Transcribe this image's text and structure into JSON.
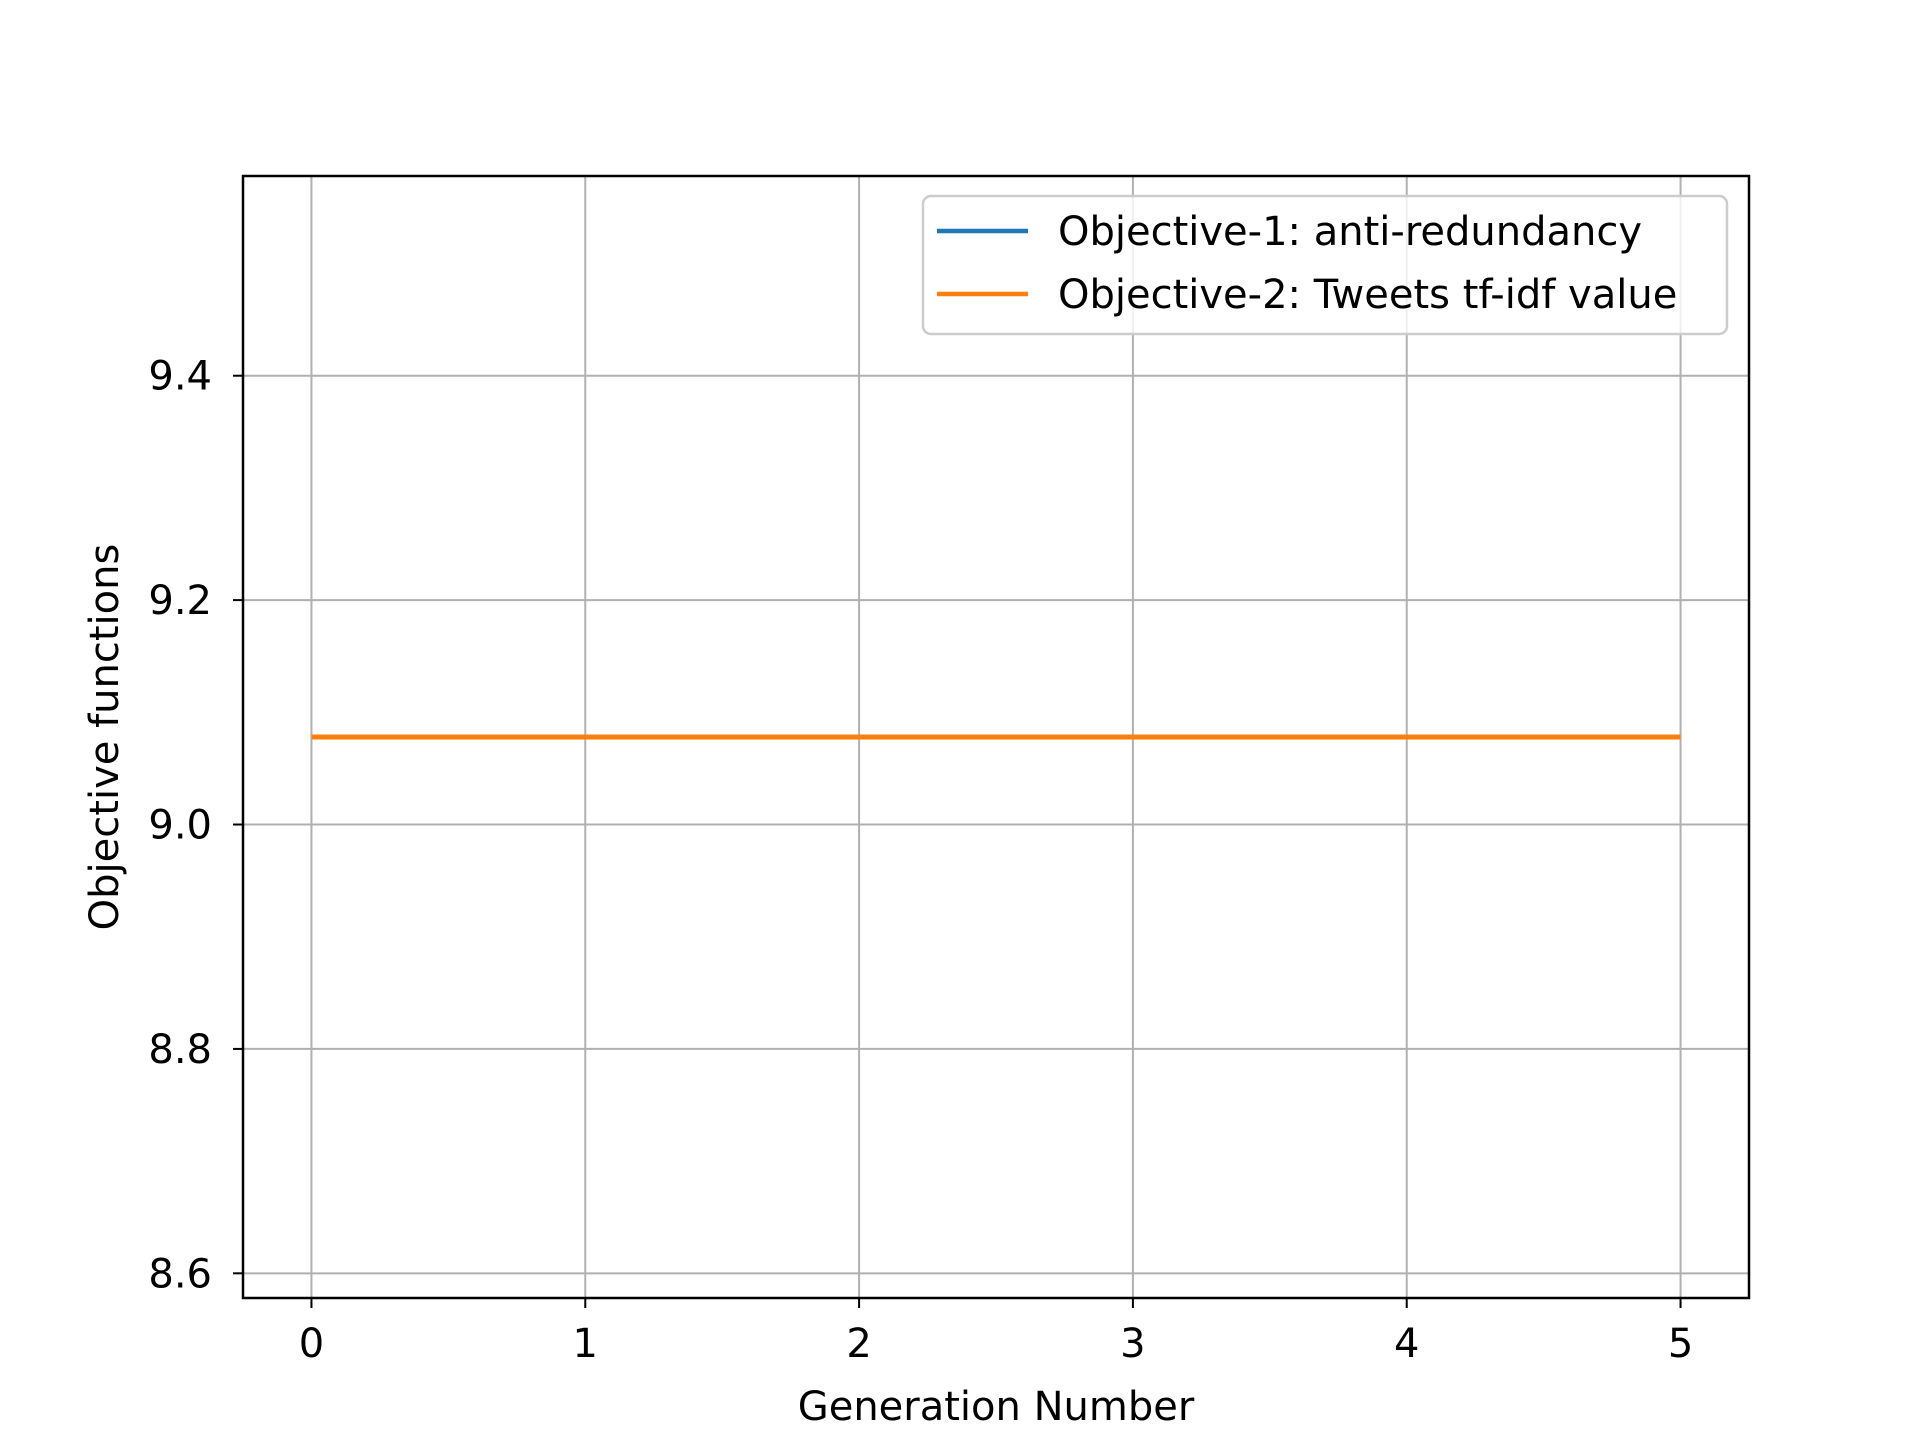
{
  "chart_data": {
    "type": "line",
    "title": "",
    "xlabel": "Generation Number",
    "ylabel": "Objective functions",
    "x": [
      0,
      1,
      2,
      3,
      4,
      5
    ],
    "xlim": [
      -0.25,
      5.25
    ],
    "ylim": [
      8.578,
      9.578
    ],
    "xticks": [
      0,
      1,
      2,
      3,
      4,
      5
    ],
    "xtick_labels": [
      "0",
      "1",
      "2",
      "3",
      "4",
      "5"
    ],
    "yticks": [
      8.6,
      8.8,
      9.0,
      9.2,
      9.4
    ],
    "ytick_labels": [
      "8.6",
      "8.8",
      "9.0",
      "9.2",
      "9.4"
    ],
    "grid": true,
    "legend_position": "top-right",
    "series": [
      {
        "name": "Objective-1: anti-redundancy",
        "color": "#1f77b4",
        "values": [
          9.078,
          9.078,
          9.078,
          9.078,
          9.078,
          9.078
        ]
      },
      {
        "name": "Objective-2: Tweets tf-idf value",
        "color": "#ff7f0e",
        "values": [
          9.078,
          9.078,
          9.078,
          9.078,
          9.078,
          9.078
        ]
      }
    ]
  }
}
